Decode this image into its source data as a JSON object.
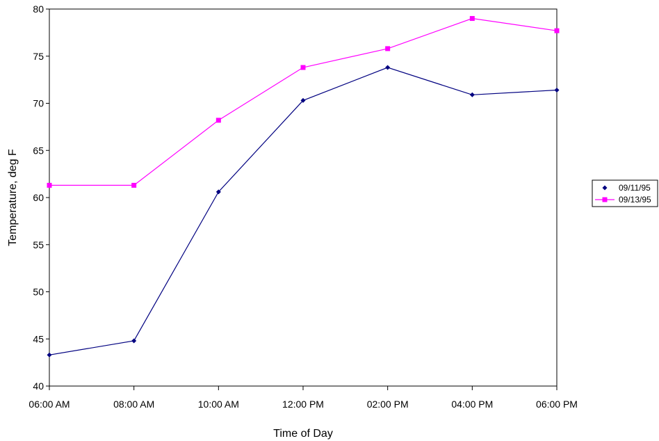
{
  "chart_data": {
    "type": "line",
    "title": "",
    "xlabel": "Time of Day",
    "ylabel": "Temperature, deg F",
    "categories": [
      "06:00 AM",
      "08:00 AM",
      "10:00 AM",
      "12:00 PM",
      "02:00 PM",
      "04:00 PM",
      "06:00 PM"
    ],
    "ylim": [
      40,
      80
    ],
    "yticks": [
      40,
      45,
      50,
      55,
      60,
      65,
      70,
      75,
      80
    ],
    "grid": false,
    "legend_position": "right",
    "series": [
      {
        "name": "09/11/95",
        "color": "#000080",
        "marker": "diamond",
        "values": [
          43.3,
          44.8,
          60.6,
          70.3,
          73.8,
          70.9,
          71.4
        ]
      },
      {
        "name": "09/13/95",
        "color": "#FF00FF",
        "marker": "square",
        "values": [
          61.3,
          61.3,
          68.2,
          73.8,
          75.8,
          79.0,
          77.7
        ]
      }
    ]
  }
}
